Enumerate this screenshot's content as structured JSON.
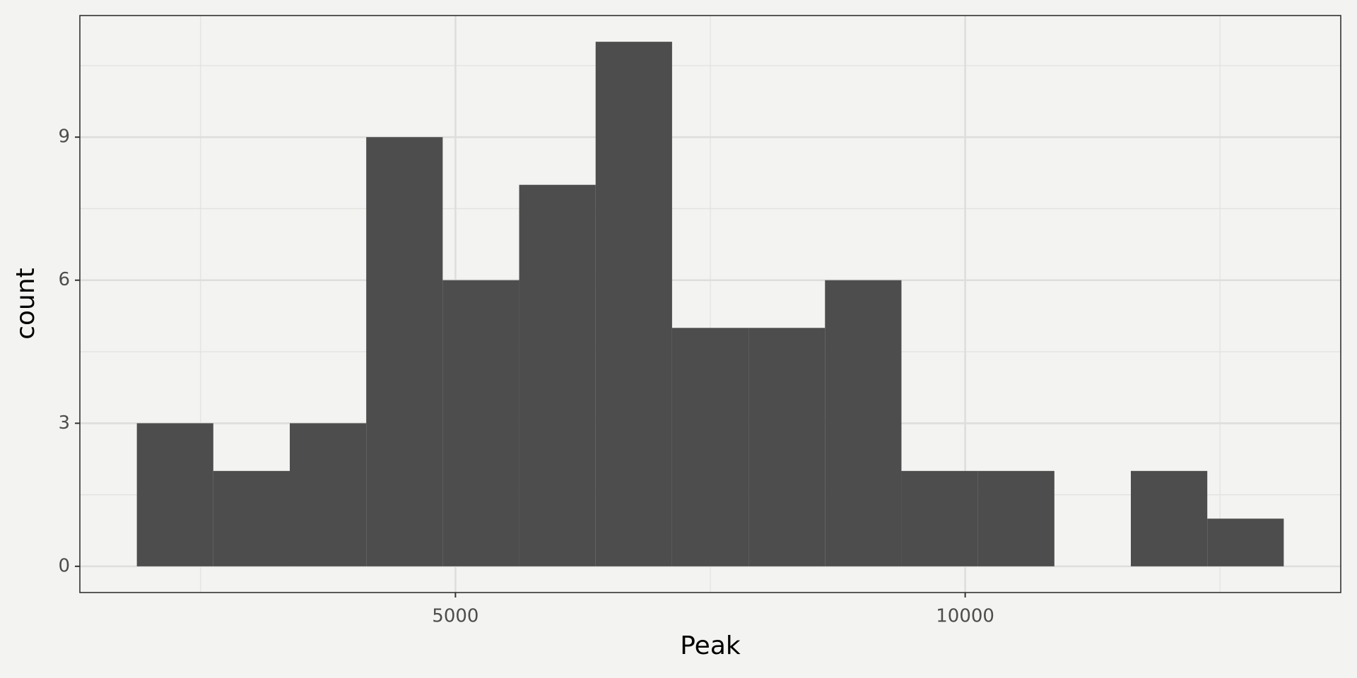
{
  "chart_data": {
    "type": "histogram",
    "x_label": "Peak",
    "y_label": "count",
    "bins": [
      1875,
      2625,
      3375,
      4125,
      4875,
      5625,
      6375,
      7125,
      7875,
      8625,
      9375,
      10125,
      10875,
      11625,
      12375,
      13125
    ],
    "values": [
      3,
      2,
      3,
      9,
      6,
      8,
      11,
      5,
      5,
      6,
      2,
      2,
      0,
      2,
      1
    ],
    "color": "#4d4d4d",
    "xlim": [
      1316,
      13684
    ],
    "ylim": [
      -0.55,
      11.55
    ],
    "xticks": [
      5000,
      10000
    ],
    "yticks": [
      0,
      3,
      6,
      9
    ],
    "grid": true
  }
}
